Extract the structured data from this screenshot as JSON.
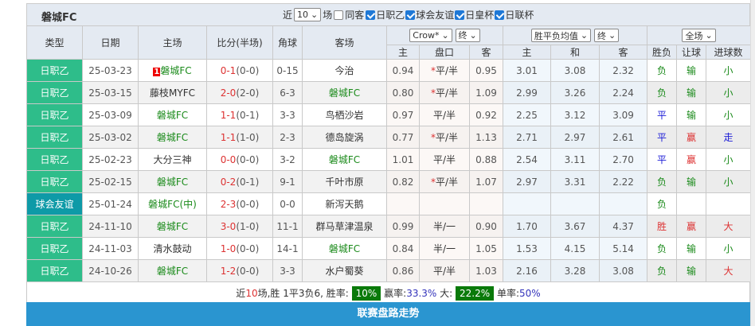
{
  "team": "磐城FC",
  "filters": {
    "recent_label": "近",
    "count": "10",
    "games_label": "场",
    "same_away": "同客",
    "same_away_checked": false,
    "leagues": [
      {
        "label": "日职乙",
        "checked": true
      },
      {
        "label": "球会友谊",
        "checked": true
      },
      {
        "label": "日皇杯",
        "checked": true
      },
      {
        "label": "日联杯",
        "checked": true
      }
    ]
  },
  "headers": {
    "type": "类型",
    "date": "日期",
    "home": "主场",
    "score": "比分(半场)",
    "corner": "角球",
    "away": "客场",
    "company": "Crow*",
    "company_time": "终",
    "odds_type": "胜平负均值",
    "odds_time": "终",
    "period": "全场",
    "sub": [
      "主",
      "盘口",
      "客",
      "主",
      "和",
      "客",
      "胜负",
      "让球",
      "进球数"
    ]
  },
  "colors": {
    "accent_green": "#2ebd8a",
    "friendly": "#0e9aa7",
    "button": "#2a95d0",
    "win_box": "#0a7a0a"
  },
  "rows": [
    {
      "type": "日职乙",
      "date": "25-03-23",
      "home": "磐城FC",
      "home_rank": "1",
      "home_self": true,
      "score": "0-1",
      "half": "(0-0)",
      "corner": "0-15",
      "away": "今治",
      "away_self": false,
      "h": "0.94",
      "line": "平/半",
      "star": true,
      "a": "0.95",
      "w": "3.01",
      "d": "3.08",
      "l": "2.32",
      "res": "负",
      "hc": "输",
      "ou": "小"
    },
    {
      "type": "日职乙",
      "date": "25-03-15",
      "home": "藤枝MYFC",
      "home_self": false,
      "score": "2-0",
      "half": "(2-0)",
      "corner": "6-3",
      "away": "磐城FC",
      "away_self": true,
      "h": "0.80",
      "line": "平/半",
      "star": true,
      "a": "1.09",
      "w": "2.99",
      "d": "3.26",
      "l": "2.24",
      "res": "负",
      "hc": "输",
      "ou": "小"
    },
    {
      "type": "日职乙",
      "date": "25-03-09",
      "home": "磐城FC",
      "home_self": true,
      "score": "1-1",
      "half": "(0-1)",
      "corner": "3-3",
      "away": "鸟栖沙岩",
      "away_self": false,
      "h": "0.97",
      "line": "平/半",
      "star": false,
      "a": "0.92",
      "w": "2.25",
      "d": "3.12",
      "l": "3.09",
      "res": "平",
      "hc": "输",
      "ou": "小"
    },
    {
      "type": "日职乙",
      "date": "25-03-02",
      "home": "磐城FC",
      "home_self": true,
      "score": "1-1",
      "half": "(1-0)",
      "corner": "2-3",
      "away": "德岛旋涡",
      "away_self": false,
      "h": "0.77",
      "line": "平/半",
      "star": true,
      "a": "1.13",
      "w": "2.71",
      "d": "2.97",
      "l": "2.61",
      "res": "平",
      "hc": "赢",
      "ou": "走"
    },
    {
      "type": "日职乙",
      "date": "25-02-23",
      "home": "大分三神",
      "home_self": false,
      "score": "0-0",
      "half": "(0-0)",
      "corner": "3-2",
      "away": "磐城FC",
      "away_self": true,
      "h": "1.01",
      "line": "平/半",
      "star": false,
      "a": "0.88",
      "w": "2.54",
      "d": "3.11",
      "l": "2.70",
      "res": "平",
      "hc": "赢",
      "ou": "小"
    },
    {
      "type": "日职乙",
      "date": "25-02-15",
      "home": "磐城FC",
      "home_self": true,
      "score": "0-2",
      "half": "(0-1)",
      "corner": "9-1",
      "away": "千叶市原",
      "away_self": false,
      "h": "0.82",
      "line": "平/半",
      "star": true,
      "a": "1.07",
      "w": "2.97",
      "d": "3.31",
      "l": "2.22",
      "res": "负",
      "hc": "输",
      "ou": "小"
    },
    {
      "type": "球会友谊",
      "date": "25-01-24",
      "home": "磐城FC(中)",
      "home_self": true,
      "score": "2-3",
      "half": "(0-0)",
      "corner": "0-0",
      "away": "新泻天鹅",
      "away_self": false,
      "h": "",
      "line": "",
      "star": false,
      "a": "",
      "w": "",
      "d": "",
      "l": "",
      "res": "负",
      "hc": "",
      "ou": ""
    },
    {
      "type": "日职乙",
      "date": "24-11-10",
      "home": "磐城FC",
      "home_self": true,
      "score": "3-0",
      "half": "(1-0)",
      "corner": "11-1",
      "away": "群马草津温泉",
      "away_self": false,
      "h": "0.99",
      "line": "半/一",
      "star": false,
      "a": "0.90",
      "w": "1.70",
      "d": "3.67",
      "l": "4.37",
      "res": "胜",
      "hc": "赢",
      "ou": "大"
    },
    {
      "type": "日职乙",
      "date": "24-11-03",
      "home": "清水鼓动",
      "home_self": false,
      "score": "1-0",
      "half": "(0-0)",
      "corner": "14-1",
      "away": "磐城FC",
      "away_self": true,
      "h": "0.84",
      "line": "半/一",
      "star": false,
      "a": "1.05",
      "w": "1.53",
      "d": "4.15",
      "l": "5.14",
      "res": "负",
      "hc": "输",
      "ou": "小"
    },
    {
      "type": "日职乙",
      "date": "24-10-26",
      "home": "磐城FC",
      "home_self": true,
      "score": "1-2",
      "half": "(0-0)",
      "corner": "3-3",
      "away": "水户蜀葵",
      "away_self": false,
      "h": "0.86",
      "line": "平/半",
      "star": false,
      "a": "1.03",
      "w": "2.16",
      "d": "3.28",
      "l": "3.08",
      "res": "负",
      "hc": "输",
      "ou": "大"
    }
  ],
  "summary": {
    "pre": "近",
    "n": "10",
    "text": "场,胜 1平3负6, 胜率:",
    "win_rate": "10%",
    "hc_label": "赢率:",
    "hc_rate": "33.3%",
    "big_label": "大:",
    "big_rate": "22.2%",
    "odd_label": "单率:",
    "odd_rate": "50%"
  },
  "button": "联赛盘路走势"
}
